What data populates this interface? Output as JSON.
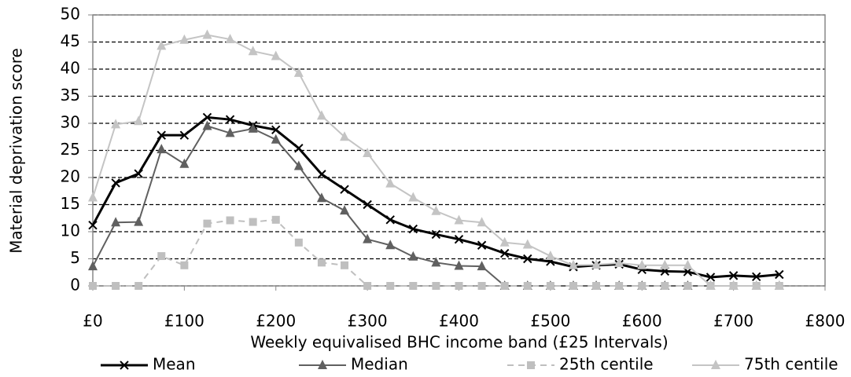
{
  "chart_data": {
    "type": "line",
    "x_label": "Weekly equivalised BHC income band (£25 Intervals)",
    "y_label": "Material deprivation score",
    "x": [
      0,
      25,
      50,
      75,
      100,
      125,
      150,
      175,
      200,
      225,
      250,
      275,
      300,
      325,
      350,
      375,
      400,
      425,
      450,
      475,
      500,
      525,
      550,
      575,
      600,
      625,
      650,
      675,
      700,
      725,
      750
    ],
    "xlim": [
      0,
      800
    ],
    "xticks": [
      {
        "value": 0,
        "label": "£0"
      },
      {
        "value": 100,
        "label": "£100"
      },
      {
        "value": 200,
        "label": "£200"
      },
      {
        "value": 300,
        "label": "£300"
      },
      {
        "value": 400,
        "label": "£400"
      },
      {
        "value": 500,
        "label": "£500"
      },
      {
        "value": 600,
        "label": "£600"
      },
      {
        "value": 700,
        "label": "£700"
      },
      {
        "value": 800,
        "label": "£800"
      }
    ],
    "ylim": [
      0,
      50
    ],
    "yticks": [
      0,
      5,
      10,
      15,
      20,
      25,
      30,
      35,
      40,
      45,
      50
    ],
    "grid": true,
    "legend": "bottom",
    "series": [
      {
        "name": "Mean",
        "color": "#000000",
        "marker": "x",
        "dashed": false,
        "line_width": 3,
        "values": [
          11.2,
          19,
          20.7,
          27.8,
          27.8,
          31.1,
          30.7,
          29.6,
          28.8,
          25.4,
          20.6,
          17.8,
          15,
          12.2,
          10.5,
          9.5,
          8.6,
          7.5,
          6,
          5,
          4.5,
          3.5,
          3.8,
          4,
          3,
          2.7,
          2.6,
          1.6,
          1.9,
          1.7,
          2.1
        ]
      },
      {
        "name": "Median",
        "color": "#606060",
        "marker": "triangle",
        "dashed": false,
        "line_width": 2,
        "values": [
          3.6,
          11.7,
          11.8,
          25.2,
          22.5,
          29.5,
          28.2,
          29,
          27,
          22.1,
          16.2,
          13.9,
          8.6,
          7.5,
          5.4,
          4.3,
          3.7,
          3.6,
          0,
          0,
          0,
          0,
          0,
          0,
          0,
          0,
          0,
          0,
          0,
          0,
          0
        ]
      },
      {
        "name": "25th centile",
        "color": "#bfbfbf",
        "marker": "square",
        "dashed": true,
        "line_width": 2,
        "values": [
          0,
          0,
          0,
          5.5,
          3.8,
          11.5,
          12.1,
          11.8,
          12.2,
          8,
          4.3,
          3.8,
          0,
          0,
          0,
          0,
          0,
          0,
          0,
          0,
          0,
          0,
          0,
          0,
          0,
          0,
          0,
          0,
          0,
          0,
          0
        ]
      },
      {
        "name": "75th centile",
        "color": "#c4c4c4",
        "marker": "triangle",
        "dashed": false,
        "line_width": 2,
        "values": [
          16.3,
          29.8,
          30.4,
          44.3,
          45.4,
          46.3,
          45.5,
          43.3,
          42.4,
          39.3,
          31.4,
          27.5,
          24.5,
          18.9,
          16.3,
          13.8,
          12.1,
          11.7,
          8,
          7.6,
          5.5,
          3.8,
          3.9,
          4.2,
          3.8,
          3.8,
          3.8,
          0,
          0,
          0,
          0
        ]
      }
    ]
  }
}
